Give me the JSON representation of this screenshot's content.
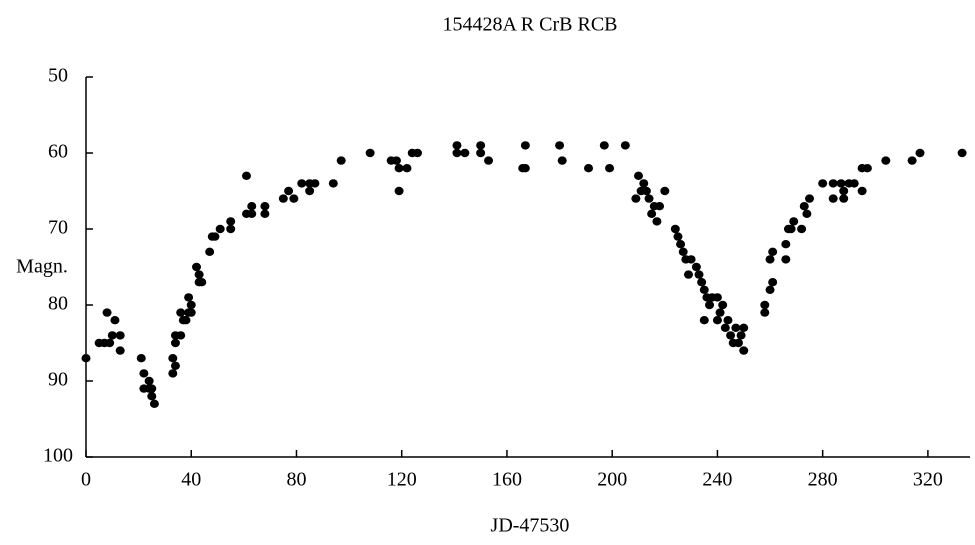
{
  "chart_data": {
    "type": "scatter",
    "title": "154428A R CrB RCB",
    "x_label": "JD-47530",
    "y_label": "Magn.",
    "color": "#000000",
    "x": [
      0,
      5,
      7,
      8,
      9,
      10,
      11,
      13,
      13,
      21,
      22,
      22,
      24,
      24,
      25,
      25,
      26,
      33,
      33,
      34,
      34,
      34,
      36,
      36,
      37,
      38,
      39,
      39,
      40,
      40,
      42,
      43,
      43,
      44,
      47,
      48,
      49,
      51,
      55,
      55,
      61,
      61,
      63,
      63,
      68,
      68,
      75,
      77,
      79,
      82,
      85,
      85,
      87,
      94,
      97,
      108,
      116,
      118,
      119,
      119,
      122,
      124,
      126,
      141,
      141,
      144,
      150,
      150,
      153,
      166,
      167,
      167,
      180,
      181,
      191,
      197,
      199,
      205,
      209,
      210,
      211,
      212,
      213,
      214,
      215,
      216,
      217,
      218,
      220,
      224,
      225,
      226,
      227,
      228,
      229,
      230,
      232,
      233,
      234,
      235,
      235,
      236,
      237,
      238,
      240,
      240,
      241,
      242,
      243,
      244,
      245,
      246,
      247,
      248,
      249,
      250,
      250,
      258,
      258,
      260,
      260,
      261,
      261,
      266,
      266,
      267,
      268,
      269,
      272,
      273,
      274,
      275,
      280,
      284,
      284,
      287,
      288,
      288,
      290,
      292,
      295,
      295,
      297,
      304,
      314,
      317,
      333
    ],
    "values": [
      87,
      85,
      85,
      81,
      85,
      84,
      82,
      84,
      86,
      87,
      89,
      91,
      90,
      91,
      92,
      91,
      93,
      87,
      89,
      88,
      85,
      84,
      84,
      81,
      82,
      82,
      81,
      79,
      80,
      81,
      75,
      76,
      77,
      77,
      73,
      71,
      71,
      70,
      70,
      69,
      63,
      68,
      67,
      68,
      68,
      67,
      66,
      65,
      66,
      64,
      64,
      65,
      64,
      64,
      61,
      60,
      61,
      61,
      65,
      62,
      62,
      60,
      60,
      59,
      60,
      60,
      59,
      60,
      61,
      62,
      62,
      59,
      59,
      61,
      62,
      59,
      62,
      59,
      66,
      63,
      65,
      64,
      65,
      66,
      68,
      67,
      69,
      67,
      65,
      70,
      71,
      72,
      73,
      74,
      76,
      74,
      75,
      76,
      77,
      82,
      78,
      79,
      80,
      79,
      79,
      82,
      81,
      80,
      83,
      82,
      84,
      85,
      83,
      85,
      84,
      83,
      86,
      81,
      80,
      78,
      74,
      77,
      73,
      74,
      72,
      70,
      70,
      69,
      70,
      67,
      68,
      66,
      64,
      66,
      64,
      64,
      66,
      65,
      64,
      64,
      65,
      62,
      62,
      61,
      61,
      60,
      60
    ],
    "xlim": [
      0,
      336
    ],
    "xticks": [
      0,
      40,
      80,
      120,
      160,
      200,
      240,
      280,
      320
    ],
    "ylim": [
      100,
      50
    ],
    "yticks": [
      100,
      90,
      80,
      70,
      60,
      50
    ]
  }
}
